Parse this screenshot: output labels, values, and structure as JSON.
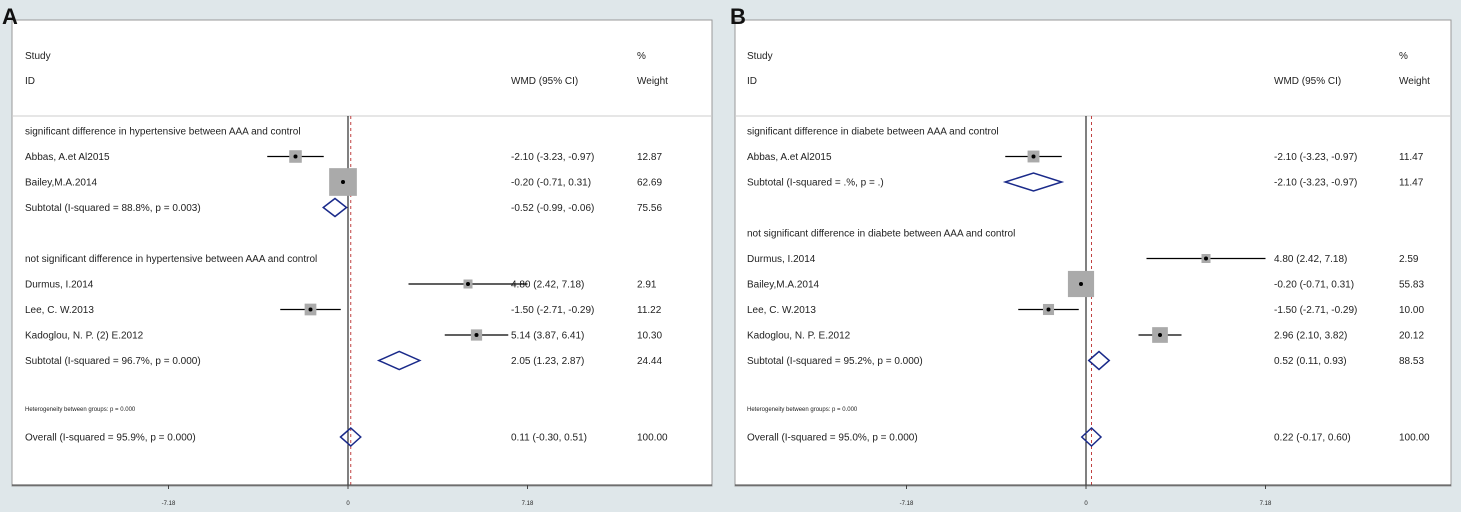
{
  "chart_data": [
    {
      "type": "forest",
      "panel_label": "A",
      "header": {
        "study": "Study",
        "id": "ID",
        "effect": "WMD (95% CI)",
        "pct": "%",
        "weight": "Weight"
      },
      "x_ticks": [
        -7.18,
        0,
        7.18
      ],
      "x_tick_labels": [
        "-7.18",
        "0",
        "7.18"
      ],
      "overall_effect": 0.11,
      "heterogeneity_text": "Heterogeneity between groups: p = 0.000",
      "rows": [
        {
          "kind": "group",
          "label": "significant difference in hypertensive between AAA and control"
        },
        {
          "kind": "study",
          "label": "Abbas, A.et Al2015",
          "est": -2.1,
          "lo": -3.23,
          "hi": -0.97,
          "ci_text": "-2.10 (-3.23, -0.97)",
          "weight": 12.87,
          "weight_text": "12.87"
        },
        {
          "kind": "study",
          "label": "Bailey,M.A.2014",
          "est": -0.2,
          "lo": -0.71,
          "hi": 0.31,
          "ci_text": "-0.20 (-0.71, 0.31)",
          "weight": 62.69,
          "weight_text": "62.69"
        },
        {
          "kind": "subtotal",
          "label": "Subtotal  (I-squared = 88.8%, p = 0.003)",
          "est": -0.52,
          "lo": -0.99,
          "hi": -0.06,
          "ci_text": "-0.52 (-0.99, -0.06)",
          "weight_text": "75.56"
        },
        {
          "kind": "spacer"
        },
        {
          "kind": "group",
          "label": "not significant difference in hypertensive between AAA and control"
        },
        {
          "kind": "study",
          "label": "Durmus, I.2014",
          "est": 4.8,
          "lo": 2.42,
          "hi": 7.18,
          "ci_text": "4.80 (2.42, 7.18)",
          "weight": 2.91,
          "weight_text": "2.91"
        },
        {
          "kind": "study",
          "label": "Lee, C. W.2013",
          "est": -1.5,
          "lo": -2.71,
          "hi": -0.29,
          "ci_text": "-1.50 (-2.71, -0.29)",
          "weight": 11.22,
          "weight_text": "11.22"
        },
        {
          "kind": "study",
          "label": "Kadoglou, N. P. (2) E.2012",
          "est": 5.14,
          "lo": 3.87,
          "hi": 6.41,
          "ci_text": "5.14 (3.87, 6.41)",
          "weight": 10.3,
          "weight_text": "10.30"
        },
        {
          "kind": "subtotal",
          "label": "Subtotal  (I-squared = 96.7%, p = 0.000)",
          "est": 2.05,
          "lo": 1.23,
          "hi": 2.87,
          "ci_text": "2.05 (1.23, 2.87)",
          "weight_text": "24.44"
        },
        {
          "kind": "spacer"
        },
        {
          "kind": "note"
        },
        {
          "kind": "overall",
          "label": "Overall  (I-squared = 95.9%, p = 0.000)",
          "est": 0.11,
          "lo": -0.3,
          "hi": 0.51,
          "ci_text": "0.11 (-0.30, 0.51)",
          "weight_text": "100.00"
        }
      ]
    },
    {
      "type": "forest",
      "panel_label": "B",
      "header": {
        "study": "Study",
        "id": "ID",
        "effect": "WMD (95% CI)",
        "pct": "%",
        "weight": "Weight"
      },
      "x_ticks": [
        -7.18,
        0,
        7.18
      ],
      "x_tick_labels": [
        "-7.18",
        "0",
        "7.18"
      ],
      "overall_effect": 0.22,
      "heterogeneity_text": "Heterogeneity between groups: p = 0.000",
      "rows": [
        {
          "kind": "group",
          "label": "significant difference in diabete between AAA and control"
        },
        {
          "kind": "study",
          "label": "Abbas, A.et Al2015",
          "est": -2.1,
          "lo": -3.23,
          "hi": -0.97,
          "ci_text": "-2.10 (-3.23, -0.97)",
          "weight": 11.47,
          "weight_text": "11.47"
        },
        {
          "kind": "subtotal",
          "label": "Subtotal  (I-squared = .%, p = .)",
          "est": -2.1,
          "lo": -3.23,
          "hi": -0.97,
          "ci_text": "-2.10 (-3.23, -0.97)",
          "weight_text": "11.47"
        },
        {
          "kind": "spacer"
        },
        {
          "kind": "group",
          "label": "not significant difference in diabete between AAA and control"
        },
        {
          "kind": "study",
          "label": "Durmus, I.2014",
          "est": 4.8,
          "lo": 2.42,
          "hi": 7.18,
          "ci_text": "4.80 (2.42, 7.18)",
          "weight": 2.59,
          "weight_text": "2.59"
        },
        {
          "kind": "study",
          "label": "Bailey,M.A.2014",
          "est": -0.2,
          "lo": -0.71,
          "hi": 0.31,
          "ci_text": "-0.20 (-0.71, 0.31)",
          "weight": 55.83,
          "weight_text": "55.83"
        },
        {
          "kind": "study",
          "label": "Lee, C. W.2013",
          "est": -1.5,
          "lo": -2.71,
          "hi": -0.29,
          "ci_text": "-1.50 (-2.71, -0.29)",
          "weight": 10.0,
          "weight_text": "10.00"
        },
        {
          "kind": "study",
          "label": "Kadoglou, N. P. E.2012",
          "est": 2.96,
          "lo": 2.1,
          "hi": 3.82,
          "ci_text": "2.96 (2.10, 3.82)",
          "weight": 20.12,
          "weight_text": "20.12"
        },
        {
          "kind": "subtotal",
          "label": "Subtotal  (I-squared = 95.2%, p = 0.000)",
          "est": 0.52,
          "lo": 0.11,
          "hi": 0.93,
          "ci_text": "0.52 (0.11, 0.93)",
          "weight_text": "88.53"
        },
        {
          "kind": "spacer"
        },
        {
          "kind": "note"
        },
        {
          "kind": "overall",
          "label": "Overall  (I-squared = 95.0%, p = 0.000)",
          "est": 0.22,
          "lo": -0.17,
          "hi": 0.6,
          "ci_text": "0.22 (-0.17, 0.60)",
          "weight_text": "100.00"
        }
      ]
    }
  ]
}
